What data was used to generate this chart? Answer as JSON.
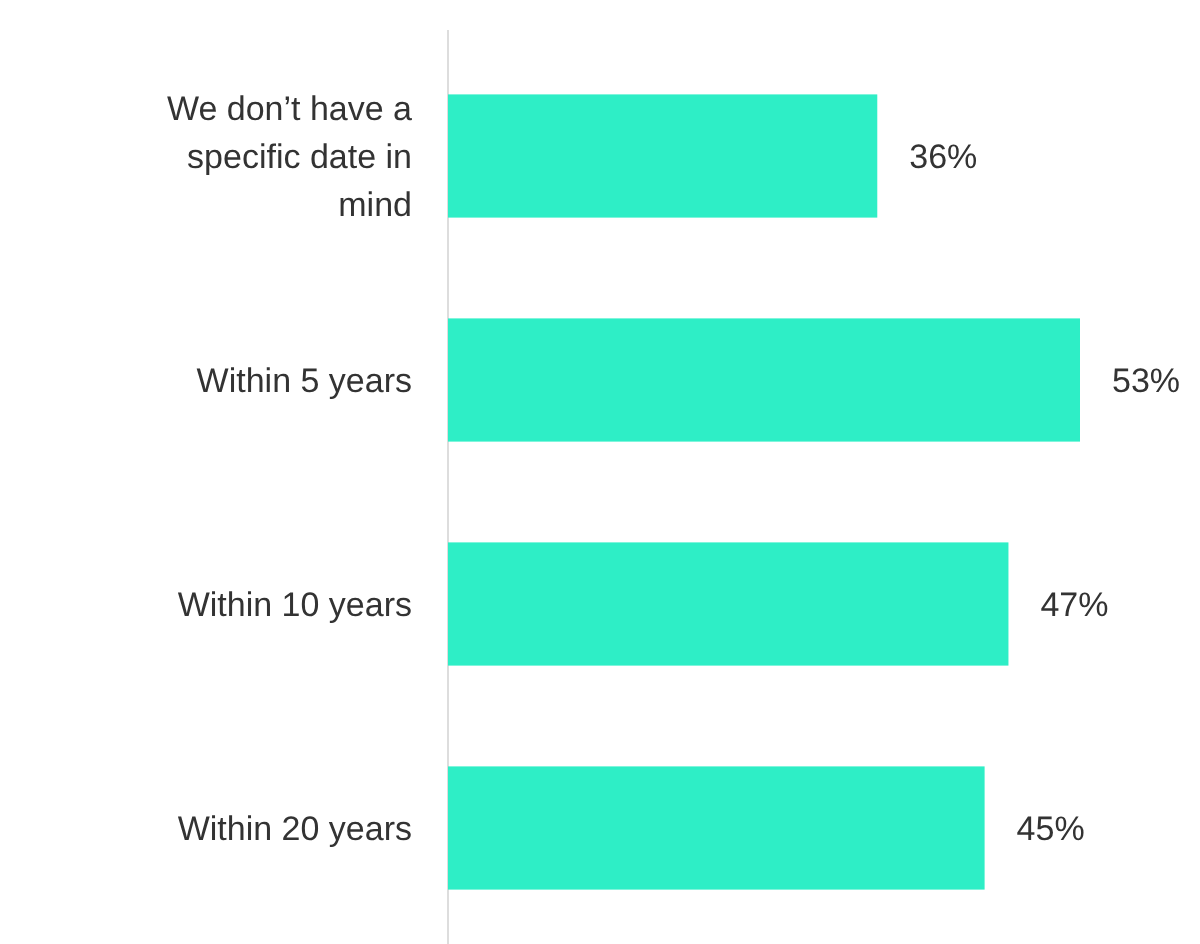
{
  "chart_data": {
    "type": "bar",
    "orientation": "horizontal",
    "categories": [
      "We don’t have a specific date in mind",
      "Within 5 years",
      "Within 10 years",
      "Within 20 years"
    ],
    "values": [
      36,
      53,
      47,
      45
    ],
    "color": "#2eeec6",
    "value_labels": [
      "36%",
      "53%",
      "47%",
      "45%"
    ]
  }
}
